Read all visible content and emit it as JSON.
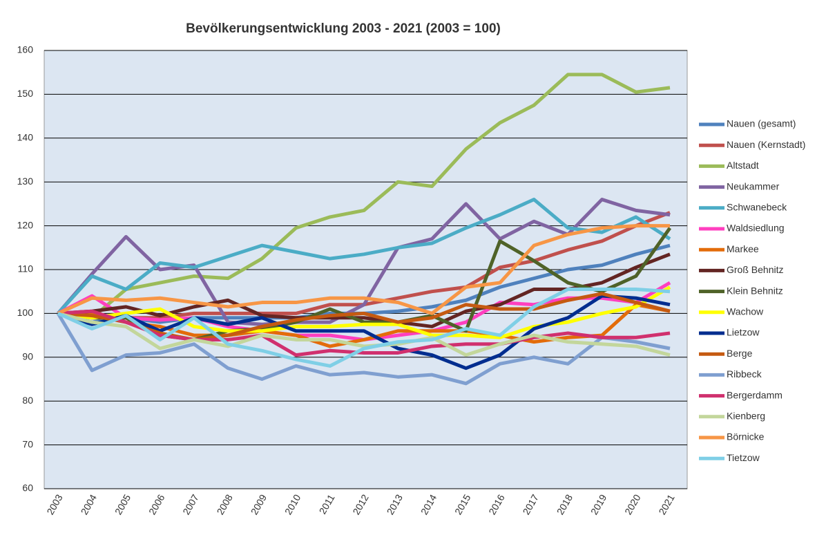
{
  "chart_data": {
    "type": "line",
    "title": "Bevölkerungsentwicklung 2003 - 2021 (2003 = 100)",
    "categories": [
      "2003",
      "2004",
      "2005",
      "2006",
      "2007",
      "2008",
      "2009",
      "2010",
      "2011",
      "2012",
      "2013",
      "2014",
      "2015",
      "2016",
      "2017",
      "2018",
      "2019",
      "2020",
      "2021"
    ],
    "ylim": [
      60,
      160
    ],
    "yticks": [
      60,
      70,
      80,
      90,
      100,
      110,
      120,
      130,
      140,
      150,
      160
    ],
    "grid": true,
    "legend": "right",
    "series": [
      {
        "name": "Nauen (gesamt)",
        "color": "#4f81bd",
        "values": [
          100,
          98,
          99,
          98,
          99,
          99,
          99,
          99,
          100,
          100,
          100.5,
          101.5,
          103,
          106,
          108,
          110,
          111,
          113.5,
          115.5
        ]
      },
      {
        "name": "Nauen (Kernstadt)",
        "color": "#c0504d",
        "values": [
          100,
          99,
          99,
          99,
          100,
          100,
          100,
          100,
          102,
          102,
          103.5,
          105,
          106,
          110.5,
          112,
          114.5,
          116.5,
          120,
          123
        ]
      },
      {
        "name": "Altstadt",
        "color": "#9bbb59",
        "values": [
          100,
          99,
          105.5,
          107,
          108.5,
          108,
          112.5,
          119.5,
          122,
          123.5,
          130,
          129,
          137.5,
          143.5,
          147.5,
          154.5,
          154.5,
          150.5,
          151.5
        ]
      },
      {
        "name": "Neukammer",
        "color": "#8064a2",
        "values": [
          100,
          109,
          117.5,
          110,
          111,
          98,
          97.5,
          98,
          98,
          102,
          115,
          117,
          125,
          117,
          121,
          118,
          126,
          123.5,
          122.5
        ]
      },
      {
        "name": "Schwanebeck",
        "color": "#4bacc6",
        "values": [
          100,
          108.5,
          105.5,
          111.5,
          110.5,
          113,
          115.5,
          114,
          112.5,
          113.5,
          115,
          116,
          119.5,
          122.5,
          126,
          119.5,
          118.5,
          122,
          117
        ]
      },
      {
        "name": "Waldsiedlung",
        "color": "#ff3fbf",
        "values": [
          100,
          104,
          99,
          98.5,
          99,
          97,
          96,
          95,
          95,
          94,
          95,
          96,
          98,
          102.5,
          102,
          103.5,
          103.5,
          102.5,
          107
        ]
      },
      {
        "name": "Markee",
        "color": "#e36c0a",
        "values": [
          100,
          100,
          98,
          97,
          95,
          95,
          96,
          95,
          92.5,
          94,
          96,
          96,
          96,
          95,
          93.5,
          94.5,
          95,
          102,
          100.5
        ]
      },
      {
        "name": "Groß Behnitz",
        "color": "#632523",
        "values": [
          100,
          100.5,
          101.5,
          99.5,
          101.5,
          103,
          99.5,
          99,
          99,
          99,
          98,
          97,
          100.5,
          102,
          105.5,
          105.5,
          107,
          110.5,
          113.5
        ]
      },
      {
        "name": "Klein Behnitz",
        "color": "#4f6228",
        "values": [
          100,
          99,
          99,
          95,
          94,
          96,
          96.5,
          98,
          101,
          98,
          98,
          99.5,
          96,
          116.5,
          112,
          107,
          105,
          108.5,
          119.5
        ]
      },
      {
        "name": "Wachow",
        "color": "#ffff00",
        "values": [
          100,
          99,
          100,
          101,
          97,
          96,
          96,
          97,
          97,
          97.5,
          97.5,
          95,
          95,
          94.5,
          97,
          98,
          100,
          101.5,
          106
        ]
      },
      {
        "name": "Lietzow",
        "color": "#002d8f",
        "values": [
          100,
          97.5,
          99.5,
          96,
          99,
          97.5,
          99,
          96,
          96,
          96,
          92,
          90.5,
          87.5,
          90.5,
          96.5,
          99,
          104,
          103.5,
          102
        ]
      },
      {
        "name": "Berge",
        "color": "#c55a11",
        "values": [
          100,
          99.5,
          98,
          95.5,
          94,
          95,
          97,
          98.5,
          99.5,
          100,
          98,
          99,
          102,
          101,
          101,
          103,
          104.5,
          102.5,
          100.5
        ]
      },
      {
        "name": "Ribbeck",
        "color": "#7f9fd0",
        "values": [
          100,
          87,
          90.5,
          91,
          93,
          87.5,
          85,
          88,
          86,
          86.5,
          85.5,
          86,
          84,
          88.5,
          90,
          88.5,
          94.5,
          93.5,
          92
        ]
      },
      {
        "name": "Bergerdamm",
        "color": "#d0306e",
        "values": [
          100,
          100.5,
          98,
          95,
          94,
          94,
          95,
          90.5,
          91.5,
          91,
          91,
          92.5,
          93,
          93,
          94.5,
          95.5,
          94.5,
          94.5,
          95.5
        ]
      },
      {
        "name": "Kienberg",
        "color": "#c3d69b",
        "values": [
          100,
          98,
          97,
          92,
          94,
          92.5,
          95,
          94,
          94,
          92.5,
          93,
          94.5,
          90.5,
          93,
          95,
          93.5,
          93,
          92.5,
          90.5
        ]
      },
      {
        "name": "Börnicke",
        "color": "#f79646",
        "values": [
          100,
          103.5,
          103,
          103.5,
          102.5,
          101.5,
          102.5,
          102.5,
          103.5,
          103.5,
          102.5,
          100,
          106,
          107,
          115.5,
          118,
          119.5,
          120,
          120
        ]
      },
      {
        "name": "Tietzow",
        "color": "#7fcfe6",
        "values": [
          100,
          96.5,
          99.5,
          94,
          99,
          93,
          91.5,
          89.5,
          88,
          92,
          93.5,
          94,
          96.5,
          95,
          101.5,
          105.5,
          105.5,
          105.5,
          105
        ]
      }
    ]
  }
}
